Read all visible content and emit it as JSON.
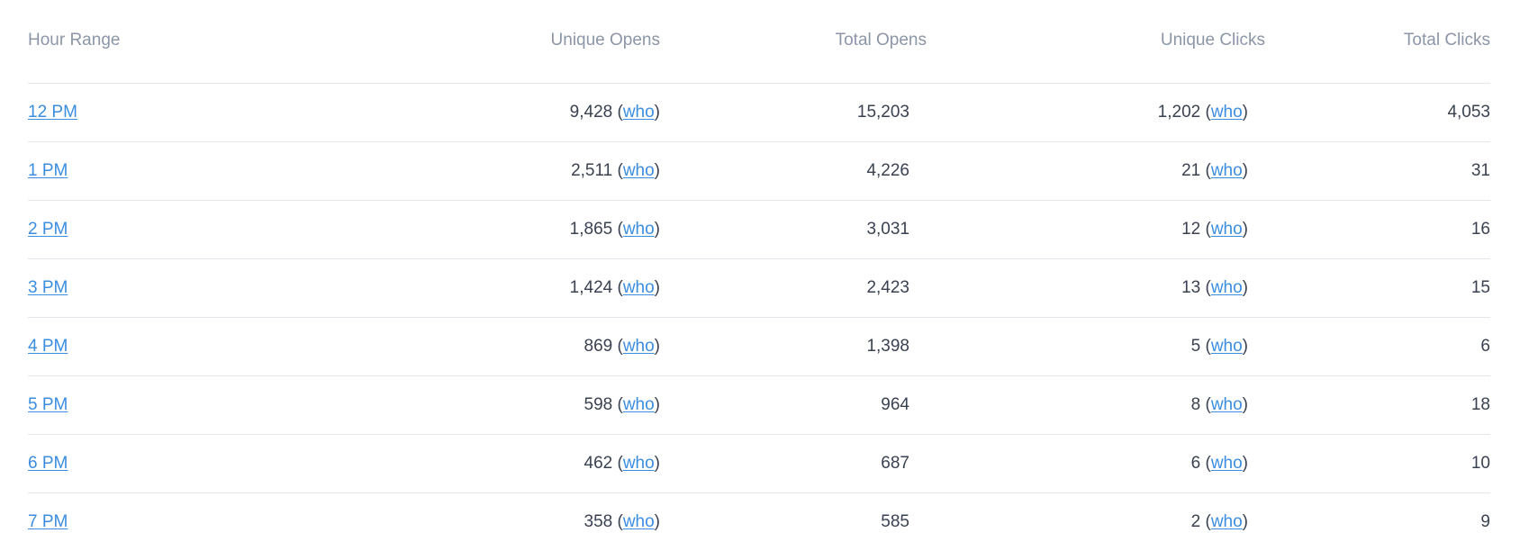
{
  "table": {
    "headers": {
      "hour_range": "Hour Range",
      "unique_opens": "Unique Opens",
      "total_opens": "Total Opens",
      "unique_clicks": "Unique Clicks",
      "total_clicks": "Total Clicks"
    },
    "who_label": "who",
    "colors": {
      "link": "#3b8de0",
      "header_text": "#8c96a6",
      "body_text": "#3a4150",
      "divider": "#e4e7eb"
    },
    "rows": [
      {
        "hour": "12 PM",
        "unique_opens": "9,428",
        "total_opens": "15,203",
        "unique_clicks": "1,202",
        "total_clicks": "4,053"
      },
      {
        "hour": "1 PM",
        "unique_opens": "2,511",
        "total_opens": "4,226",
        "unique_clicks": "21",
        "total_clicks": "31"
      },
      {
        "hour": "2 PM",
        "unique_opens": "1,865",
        "total_opens": "3,031",
        "unique_clicks": "12",
        "total_clicks": "16"
      },
      {
        "hour": "3 PM",
        "unique_opens": "1,424",
        "total_opens": "2,423",
        "unique_clicks": "13",
        "total_clicks": "15"
      },
      {
        "hour": "4 PM",
        "unique_opens": "869",
        "total_opens": "1,398",
        "unique_clicks": "5",
        "total_clicks": "6"
      },
      {
        "hour": "5 PM",
        "unique_opens": "598",
        "total_opens": "964",
        "unique_clicks": "8",
        "total_clicks": "18"
      },
      {
        "hour": "6 PM",
        "unique_opens": "462",
        "total_opens": "687",
        "unique_clicks": "6",
        "total_clicks": "10"
      },
      {
        "hour": "7 PM",
        "unique_opens": "358",
        "total_opens": "585",
        "unique_clicks": "2",
        "total_clicks": "9"
      }
    ]
  }
}
